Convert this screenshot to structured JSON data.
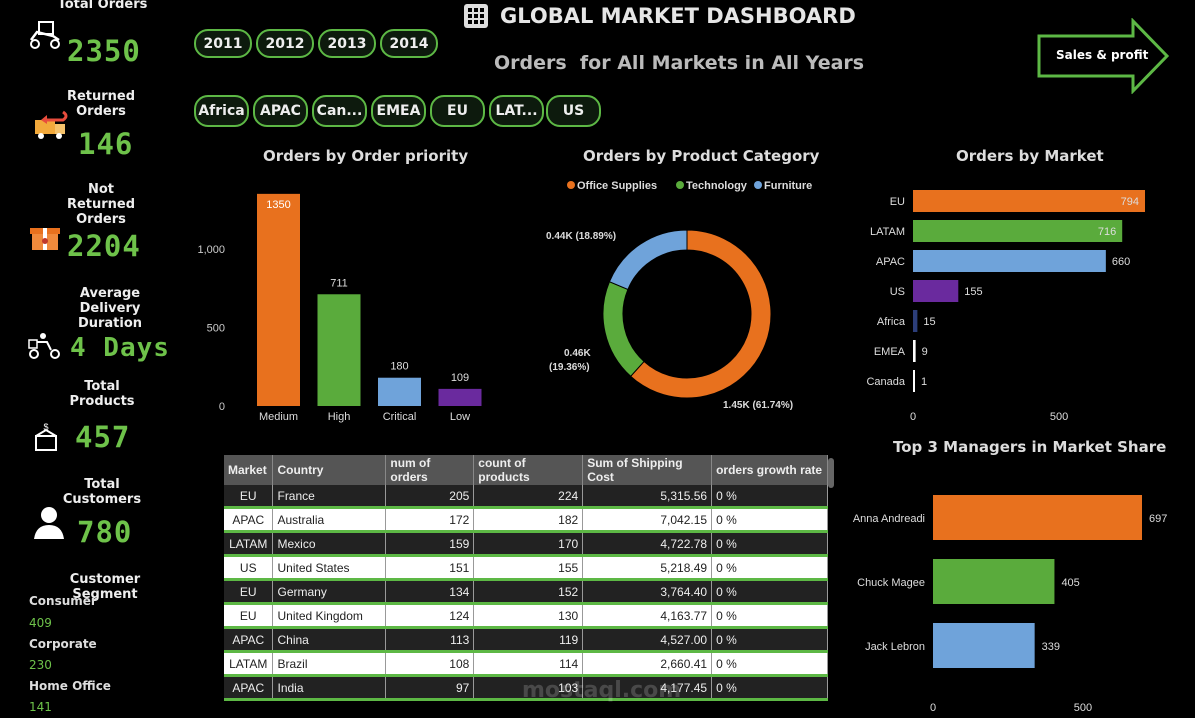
{
  "header": {
    "title": "GLOBAL MARKET DASHBOARD",
    "subtitle": "Orders  for All Markets in All Years",
    "nav_button": "Sales & profit"
  },
  "years": [
    "2011",
    "2012",
    "2013",
    "2014"
  ],
  "markets": [
    "Africa",
    "APAC",
    "Can...",
    "EMEA",
    "EU",
    "LAT...",
    "US"
  ],
  "kpis": {
    "total_orders": {
      "label": "Total Orders",
      "value": "2350"
    },
    "returned_orders": {
      "label": "Returned Orders",
      "value": "146"
    },
    "not_returned": {
      "label": "Not Returned Orders",
      "value": "2204"
    },
    "avg_delivery": {
      "label": "Average Delivery Duration",
      "value": "4 Days"
    },
    "total_products": {
      "label": "Total Products",
      "value": "457"
    },
    "total_customers": {
      "label": "Total Customers",
      "value": "780"
    }
  },
  "segments": {
    "title": "Customer Segment",
    "items": [
      {
        "name": "Consumer",
        "value": "409"
      },
      {
        "name": "Corporate",
        "value": "230"
      },
      {
        "name": "Home Office",
        "value": "141"
      }
    ]
  },
  "colors": {
    "orange": "#e8711e",
    "green": "#5aab3c",
    "blue": "#6fa3da",
    "purple": "#6a2a9e",
    "navy": "#2c3e7a",
    "white": "#ffffff"
  },
  "chart_data": [
    {
      "id": "priority",
      "type": "bar",
      "title": "Orders by Order priority",
      "categories": [
        "Medium",
        "High",
        "Critical",
        "Low"
      ],
      "values": [
        1350,
        711,
        180,
        109
      ],
      "ylim": [
        0,
        1400
      ],
      "yticks": [
        0,
        500,
        1000
      ],
      "ytick_labels": [
        "0",
        "500",
        "1,000"
      ]
    },
    {
      "id": "category",
      "type": "pie",
      "title": "Orders by Product Category",
      "legend": [
        "Office Supplies",
        "Technology",
        "Furniture"
      ],
      "values": [
        1450,
        460,
        440
      ],
      "labels": [
        "1.45K (61.74%)",
        "0.46K (19.36%)",
        "0.44K (18.89%)"
      ]
    },
    {
      "id": "market",
      "type": "bar",
      "title": "Orders by Market",
      "categories": [
        "EU",
        "LATAM",
        "APAC",
        "US",
        "Africa",
        "EMEA",
        "Canada"
      ],
      "values": [
        794,
        716,
        660,
        155,
        15,
        9,
        1
      ],
      "xticks": [
        0,
        500
      ],
      "xlim": [
        0,
        870
      ]
    },
    {
      "id": "managers",
      "type": "bar",
      "title": "Top 3 Managers in Market Share",
      "categories": [
        "Anna Andreadi",
        "Chuck Magee",
        "Jack Lebron"
      ],
      "values": [
        697,
        405,
        339
      ],
      "xticks": [
        0,
        500
      ],
      "xlim": [
        0,
        700
      ]
    }
  ],
  "table": {
    "columns": [
      "Market",
      "Country",
      "num of orders",
      "count of products",
      "Sum of Shipping Cost",
      "orders growth rate"
    ],
    "rows": [
      [
        "EU",
        "France",
        "205",
        "224",
        "5,315.56",
        "0 %"
      ],
      [
        "APAC",
        "Australia",
        "172",
        "182",
        "7,042.15",
        "0 %"
      ],
      [
        "LATAM",
        "Mexico",
        "159",
        "170",
        "4,722.78",
        "0 %"
      ],
      [
        "US",
        "United States",
        "151",
        "155",
        "5,218.49",
        "0 %"
      ],
      [
        "EU",
        "Germany",
        "134",
        "152",
        "3,764.40",
        "0 %"
      ],
      [
        "EU",
        "United Kingdom",
        "124",
        "130",
        "4,163.77",
        "0 %"
      ],
      [
        "APAC",
        "China",
        "113",
        "119",
        "4,527.00",
        "0 %"
      ],
      [
        "LATAM",
        "Brazil",
        "108",
        "114",
        "2,660.41",
        "0 %"
      ],
      [
        "APAC",
        "India",
        "97",
        "103",
        "4,177.45",
        "0 %"
      ]
    ]
  },
  "watermark": {
    "text": "mostaql.com"
  }
}
